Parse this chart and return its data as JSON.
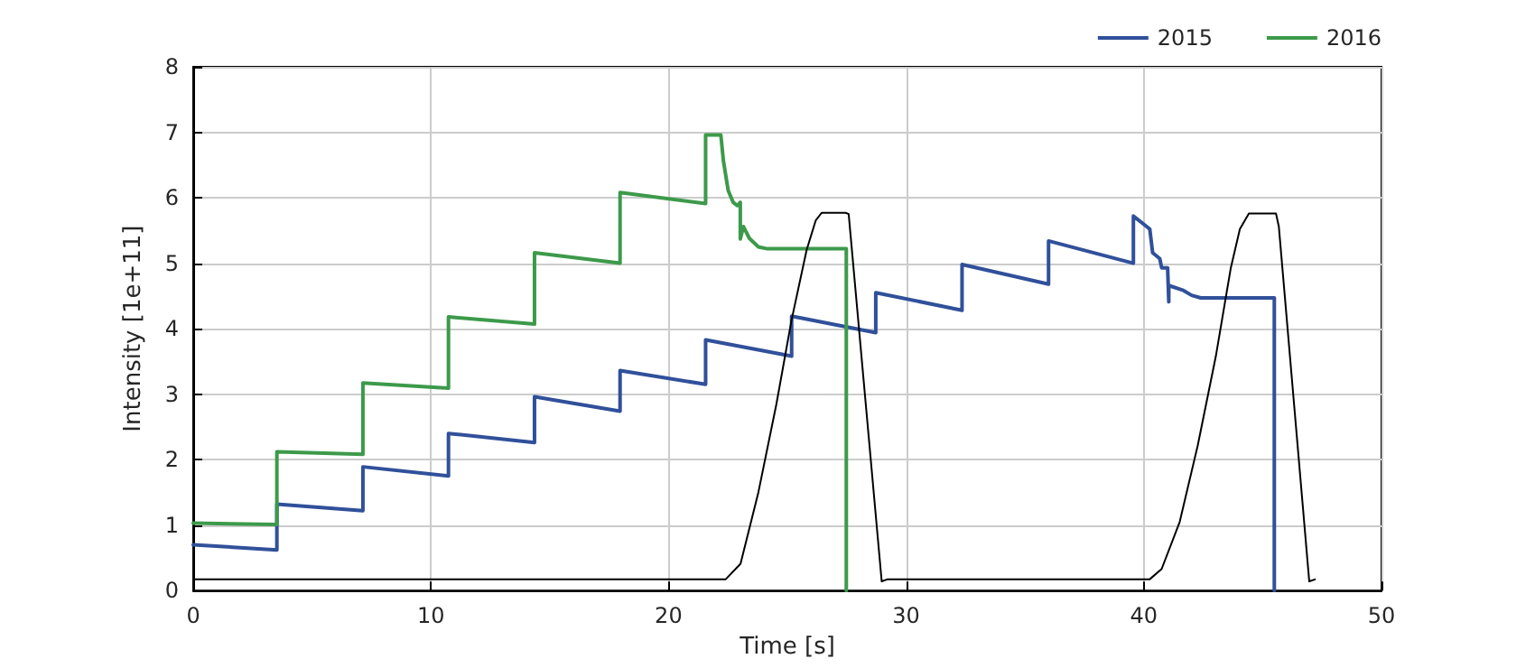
{
  "chart_data": {
    "type": "line",
    "xlabel": "Time [s]",
    "ylabel": "Intensity [1e+11]",
    "xlim": [
      0,
      50
    ],
    "xticks": [
      0,
      10,
      20,
      30,
      40,
      50
    ],
    "ylim": [
      0,
      8
    ],
    "yticks": [
      0,
      1,
      2,
      3,
      4,
      5,
      6,
      7,
      8
    ],
    "grid": true,
    "legend": "top right",
    "marker": "none",
    "line_style": "solid",
    "series": [
      {
        "name": "2015",
        "color": "#30509a",
        "x": [
          0,
          3.52,
          3.52,
          7.14,
          7.14,
          10.74,
          10.74,
          14.36,
          14.36,
          17.96,
          17.96,
          21.56,
          21.56,
          25.18,
          25.18,
          28.72,
          28.72,
          32.35,
          32.35,
          35.99,
          35.99,
          39.56,
          39.56,
          40.05,
          40.25,
          40.37,
          40.67,
          40.75,
          41.0,
          41.05,
          41.05,
          41.63,
          42.01,
          42.39,
          45.49,
          45.49
        ],
        "values": [
          0.7,
          0.62,
          1.32,
          1.22,
          1.89,
          1.75,
          2.4,
          2.26,
          2.96,
          2.74,
          3.36,
          3.15,
          3.83,
          3.58,
          4.19,
          3.94,
          4.55,
          4.28,
          4.98,
          4.68,
          5.34,
          5.0,
          5.72,
          5.58,
          5.52,
          5.16,
          5.07,
          4.93,
          4.93,
          4.41,
          4.66,
          4.59,
          4.51,
          4.47,
          4.47,
          0
        ]
      },
      {
        "name": "2016",
        "color": "#3c9a4a",
        "x": [
          0,
          3.52,
          3.52,
          7.14,
          7.14,
          10.74,
          10.74,
          14.36,
          14.36,
          17.96,
          17.96,
          21.56,
          21.56,
          22.2,
          22.31,
          22.51,
          22.72,
          22.89,
          23.02,
          23.02,
          23.15,
          23.4,
          23.78,
          24.16,
          27.48,
          27.48
        ],
        "values": [
          1.03,
          1.01,
          2.12,
          2.08,
          3.17,
          3.09,
          4.18,
          4.07,
          5.16,
          5.0,
          6.08,
          5.91,
          6.96,
          6.96,
          6.56,
          6.11,
          5.93,
          5.88,
          5.93,
          5.37,
          5.56,
          5.38,
          5.25,
          5.22,
          5.22,
          0
        ]
      },
      {
        "color": "#000000",
        "x": [
          0,
          22.4,
          23.03,
          23.78,
          24.54,
          25.17,
          25.81,
          26.19,
          26.44,
          27.45,
          27.58,
          28.97,
          29.2,
          40.24,
          40.75,
          41.51,
          42.27,
          43.03,
          43.66,
          44.04,
          44.42,
          45.56,
          45.68,
          46.96,
          47.2
        ],
        "values": [
          0.17,
          0.17,
          0.41,
          1.5,
          2.85,
          4.12,
          5.2,
          5.65,
          5.77,
          5.77,
          5.75,
          0.14,
          0.17,
          0.17,
          0.33,
          1.05,
          2.22,
          3.58,
          4.93,
          5.52,
          5.76,
          5.76,
          5.56,
          0.14,
          0.17
        ]
      }
    ]
  }
}
